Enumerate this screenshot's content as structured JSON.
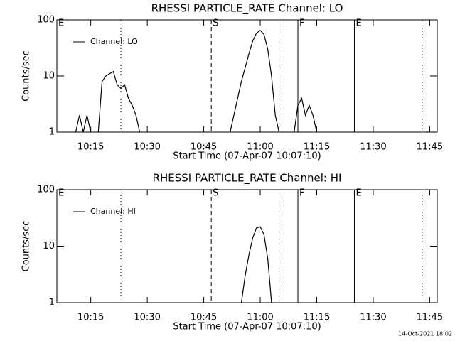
{
  "chart_data": [
    {
      "type": "line",
      "title": "RHESSI PARTICLE_RATE Channel: LO",
      "xlabel": "Start Time (07-Apr-07 10:07:10)",
      "ylabel": "Counts/sec",
      "x": [
        "10:11",
        "10:12",
        "10:13",
        "10:14",
        "10:15",
        "10:16",
        "10:17",
        "10:18",
        "10:19",
        "10:20",
        "10:21",
        "10:22",
        "10:23",
        "10:24",
        "10:25",
        "10:26",
        "10:27",
        "10:28",
        "10:29",
        "10:52",
        "10:53",
        "10:54",
        "10:55",
        "10:56",
        "10:57",
        "10:58",
        "10:59",
        "11:00",
        "11:01",
        "11:02",
        "11:03",
        "11:04",
        "11:05",
        "11:06",
        "11:09",
        "11:10",
        "11:11",
        "11:12",
        "11:13",
        "11:14",
        "11:15"
      ],
      "series": [
        {
          "name": "Channel: LO",
          "color": "#000000",
          "values": [
            1,
            2,
            1,
            2,
            1,
            null,
            1,
            8,
            10,
            11,
            12,
            7,
            6,
            7,
            4,
            3,
            2,
            1,
            null,
            1,
            2,
            4,
            8,
            14,
            25,
            42,
            58,
            65,
            55,
            30,
            10,
            2,
            1,
            null,
            1,
            3,
            4,
            2,
            3,
            2,
            1
          ]
        }
      ],
      "xlim": [
        "10:06",
        "11:47"
      ],
      "xticks": [
        "10:15",
        "10:30",
        "10:45",
        "11:00",
        "11:15",
        "11:30",
        "11:45"
      ],
      "ylim": [
        1,
        100
      ],
      "yticks": [
        1,
        10,
        100
      ],
      "log_y": true,
      "legend": "upper left",
      "markers": [
        {
          "x": "10:06",
          "style": "none",
          "label": "E"
        },
        {
          "x": "10:23",
          "style": "dotted"
        },
        {
          "x": "10:47",
          "style": "dashed",
          "label": "S"
        },
        {
          "x": "11:05",
          "style": "dashed"
        },
        {
          "x": "11:10",
          "style": "solid",
          "label": "F"
        },
        {
          "x": "11:25",
          "style": "solid",
          "label": "E"
        },
        {
          "x": "11:43",
          "style": "dotted"
        }
      ]
    },
    {
      "type": "line",
      "title": "RHESSI PARTICLE_RATE Channel: HI",
      "xlabel": "Start Time (07-Apr-07 10:07:10)",
      "ylabel": "Counts/sec",
      "x": [
        "10:55",
        "10:56",
        "10:57",
        "10:58",
        "10:59",
        "11:00",
        "11:01",
        "11:02",
        "11:03"
      ],
      "series": [
        {
          "name": "Channel: HI",
          "color": "#000000",
          "values": [
            1,
            3,
            7,
            14,
            21,
            22,
            16,
            6,
            1
          ]
        }
      ],
      "xlim": [
        "10:06",
        "11:47"
      ],
      "xticks": [
        "10:15",
        "10:30",
        "10:45",
        "11:00",
        "11:15",
        "11:30",
        "11:45"
      ],
      "ylim": [
        1,
        100
      ],
      "yticks": [
        1,
        10,
        100
      ],
      "log_y": true,
      "legend": "upper left",
      "markers": [
        {
          "x": "10:06",
          "style": "none",
          "label": "E"
        },
        {
          "x": "10:23",
          "style": "dotted"
        },
        {
          "x": "10:47",
          "style": "dashed",
          "label": "S"
        },
        {
          "x": "11:05",
          "style": "dashed"
        },
        {
          "x": "11:10",
          "style": "solid",
          "label": "F"
        },
        {
          "x": "11:25",
          "style": "solid",
          "label": "E"
        },
        {
          "x": "11:43",
          "style": "dotted"
        }
      ]
    }
  ],
  "timestamp": "14-Oct-2021 18:02"
}
